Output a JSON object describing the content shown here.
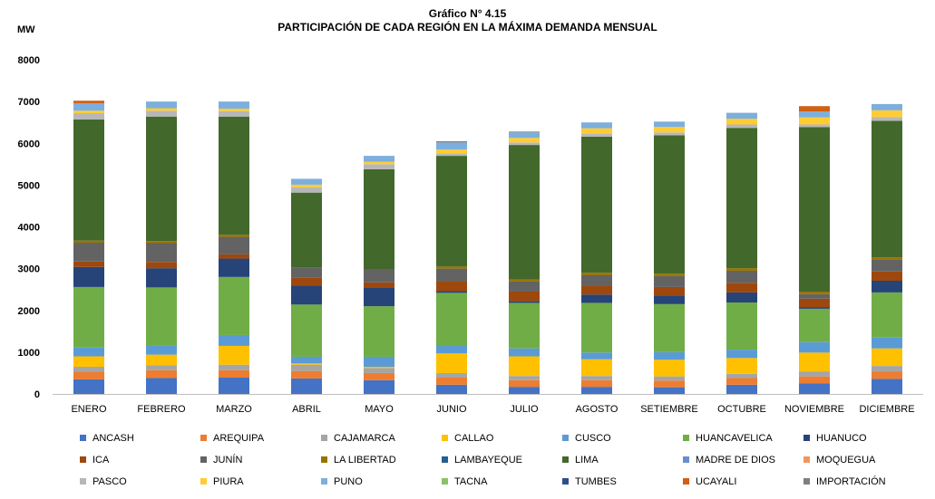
{
  "chart_data": {
    "type": "bar",
    "stacked": true,
    "title": "Gráfico N° 4.15",
    "subtitle": "PARTICIPACIÓN DE CADA REGIÓN EN LA MÁXIMA DEMANDA MENSUAL",
    "ylabel": "MW",
    "xlabel": "",
    "ylim": [
      0,
      8000
    ],
    "yticks": [
      0,
      1000,
      2000,
      3000,
      4000,
      5000,
      6000,
      7000,
      8000
    ],
    "grid": false,
    "legend_position": "bottom",
    "categories": [
      "ENERO",
      "FEBRERO",
      "MARZO",
      "ABRIL",
      "MAYO",
      "JUNIO",
      "JULIO",
      "AGOSTO",
      "SETIEMBRE",
      "OCTUBRE",
      "NOVIEMBRE",
      "DICIEMBRE"
    ],
    "series": [
      {
        "name": "ANCASH",
        "color": "#4472C4",
        "values": [
          350,
          380,
          390,
          370,
          330,
          220,
          170,
          170,
          160,
          220,
          250,
          360
        ]
      },
      {
        "name": "AREQUIPA",
        "color": "#ED7D31",
        "values": [
          180,
          190,
          180,
          180,
          170,
          170,
          160,
          160,
          160,
          160,
          170,
          180
        ]
      },
      {
        "name": "CAJAMARCA",
        "color": "#A5A5A5",
        "values": [
          120,
          120,
          130,
          150,
          120,
          110,
          100,
          100,
          100,
          100,
          120,
          130
        ]
      },
      {
        "name": "CALLAO",
        "color": "#FFC000",
        "values": [
          250,
          250,
          450,
          30,
          30,
          470,
          470,
          400,
          400,
          380,
          450,
          420
        ]
      },
      {
        "name": "CUSCO",
        "color": "#5B9BD5",
        "values": [
          210,
          210,
          260,
          160,
          240,
          200,
          190,
          160,
          180,
          200,
          250,
          260
        ]
      },
      {
        "name": "HUANCAVELICA",
        "color": "#70AD47",
        "values": [
          1450,
          1400,
          1390,
          1250,
          1210,
          1250,
          1090,
          1190,
          1150,
          1130,
          800,
          1080
        ]
      },
      {
        "name": "HUANUCO",
        "color": "#264478",
        "values": [
          480,
          460,
          440,
          450,
          450,
          40,
          40,
          200,
          210,
          240,
          40,
          280
        ]
      },
      {
        "name": "ICA",
        "color": "#9E480E",
        "values": [
          130,
          150,
          100,
          200,
          120,
          240,
          230,
          210,
          200,
          230,
          200,
          220
        ]
      },
      {
        "name": "JUNÍN",
        "color": "#636363",
        "values": [
          450,
          450,
          420,
          230,
          310,
          300,
          240,
          250,
          260,
          290,
          110,
          280
        ]
      },
      {
        "name": "LA LIBERTAD",
        "color": "#997300",
        "values": [
          50,
          50,
          50,
          0,
          0,
          50,
          50,
          60,
          60,
          60,
          60,
          60
        ]
      },
      {
        "name": "LAMBAYEQUE",
        "color": "#255E91",
        "values": [
          0,
          0,
          0,
          0,
          0,
          0,
          0,
          0,
          0,
          0,
          0,
          0
        ]
      },
      {
        "name": "LIMA",
        "color": "#43682B",
        "values": [
          2900,
          2980,
          2830,
          1800,
          2400,
          2650,
          3220,
          3260,
          3310,
          3360,
          3940,
          3270
        ]
      },
      {
        "name": "MADRE DE DIOS",
        "color": "#698ED0",
        "values": [
          0,
          0,
          0,
          0,
          0,
          0,
          0,
          0,
          0,
          0,
          0,
          0
        ]
      },
      {
        "name": "MOQUEGUA",
        "color": "#F1975A",
        "values": [
          0,
          0,
          0,
          0,
          0,
          0,
          0,
          0,
          0,
          0,
          0,
          0
        ]
      },
      {
        "name": "PASCO",
        "color": "#B7B7B7",
        "values": [
          150,
          140,
          130,
          130,
          120,
          60,
          60,
          70,
          70,
          80,
          60,
          90
        ]
      },
      {
        "name": "PIURA",
        "color": "#FFCD33",
        "values": [
          60,
          60,
          60,
          60,
          60,
          90,
          110,
          130,
          130,
          140,
          170,
          160
        ]
      },
      {
        "name": "PUNO",
        "color": "#7CAFDD",
        "values": [
          180,
          160,
          170,
          140,
          140,
          170,
          130,
          140,
          130,
          140,
          140,
          150
        ]
      },
      {
        "name": "TACNA",
        "color": "#8CC168",
        "values": [
          0,
          0,
          0,
          0,
          0,
          0,
          0,
          0,
          0,
          0,
          0,
          0
        ]
      },
      {
        "name": "TUMBES",
        "color": "#2E4F8A",
        "values": [
          0,
          0,
          0,
          0,
          0,
          0,
          0,
          0,
          0,
          0,
          0,
          0
        ]
      },
      {
        "name": "UCAYALI",
        "color": "#D26014",
        "values": [
          60,
          0,
          0,
          0,
          0,
          0,
          0,
          0,
          0,
          0,
          130,
          0
        ]
      },
      {
        "name": "IMPORTACIÓN",
        "color": "#7F7F7F",
        "values": [
          0,
          0,
          0,
          0,
          0,
          30,
          20,
          0,
          0,
          0,
          0,
          0
        ]
      }
    ]
  }
}
